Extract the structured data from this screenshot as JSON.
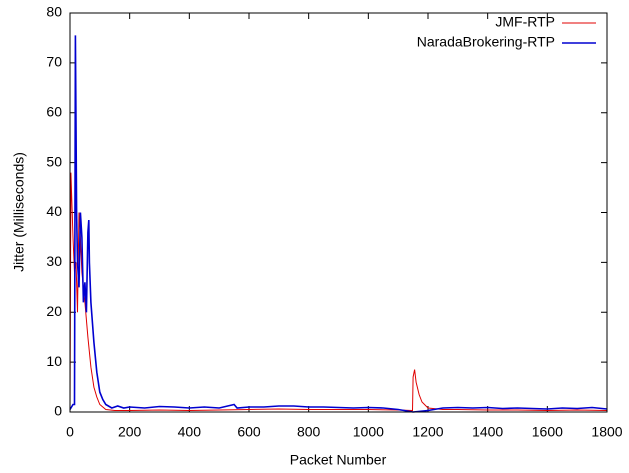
{
  "chart_data": {
    "type": "line",
    "xlabel": "Packet Number",
    "ylabel": "Jitter  (Milliseconds)",
    "xlim": [
      0,
      1800
    ],
    "xticks": [
      0,
      200,
      400,
      600,
      800,
      1000,
      1200,
      1400,
      1600,
      1800
    ],
    "ylim": [
      0,
      80
    ],
    "yticks": [
      0,
      10,
      20,
      30,
      40,
      50,
      60,
      70,
      80
    ],
    "legend": "top-right",
    "series": [
      {
        "name": "JMF-RTP",
        "color": "#e00000",
        "x": [
          0,
          3,
          10,
          15,
          20,
          25,
          30,
          35,
          40,
          50,
          60,
          70,
          80,
          90,
          100,
          120,
          150,
          200,
          300,
          400,
          500,
          600,
          700,
          800,
          900,
          1000,
          1100,
          1148,
          1150,
          1155,
          1160,
          1170,
          1180,
          1200,
          1250,
          1300,
          1400,
          1500,
          1600,
          1700,
          1800
        ],
        "values": [
          0,
          48,
          35,
          28,
          30,
          20,
          40,
          35,
          28,
          22,
          15,
          9,
          5,
          3,
          1.5,
          0.5,
          0.3,
          0.3,
          0.4,
          0.3,
          0.4,
          0.5,
          0.6,
          0.5,
          0.5,
          0.5,
          0.4,
          0.3,
          7,
          8.5,
          6,
          3.5,
          2,
          0.8,
          0.5,
          0.5,
          0.4,
          0.4,
          0.3,
          0.4,
          0.3
        ]
      },
      {
        "name": "NaradaBrokering-RTP",
        "color": "#0000d0",
        "x": [
          0,
          10,
          15,
          18,
          22,
          25,
          30,
          35,
          40,
          45,
          50,
          55,
          60,
          63,
          65,
          70,
          80,
          90,
          100,
          110,
          120,
          140,
          160,
          180,
          200,
          250,
          300,
          350,
          400,
          450,
          500,
          550,
          560,
          600,
          650,
          700,
          750,
          800,
          850,
          900,
          950,
          1000,
          1050,
          1100,
          1150,
          1200,
          1250,
          1300,
          1350,
          1400,
          1450,
          1500,
          1550,
          1600,
          1650,
          1700,
          1750,
          1800
        ],
        "values": [
          0.5,
          1.5,
          1.5,
          75.5,
          40,
          30,
          25,
          40,
          35,
          22,
          26,
          20,
          36,
          38.5,
          30,
          22,
          14,
          8,
          4,
          2.5,
          1.5,
          0.8,
          1.2,
          0.8,
          1,
          0.8,
          1.1,
          1,
          0.8,
          1,
          0.8,
          1.5,
          0.8,
          1,
          1,
          1.2,
          1.2,
          1,
          1,
          0.9,
          0.8,
          0.9,
          0.8,
          0.5,
          0,
          0.3,
          0.8,
          0.9,
          0.8,
          0.9,
          0.7,
          0.8,
          0.7,
          0.6,
          0.8,
          0.7,
          0.9,
          0.6
        ]
      }
    ]
  }
}
